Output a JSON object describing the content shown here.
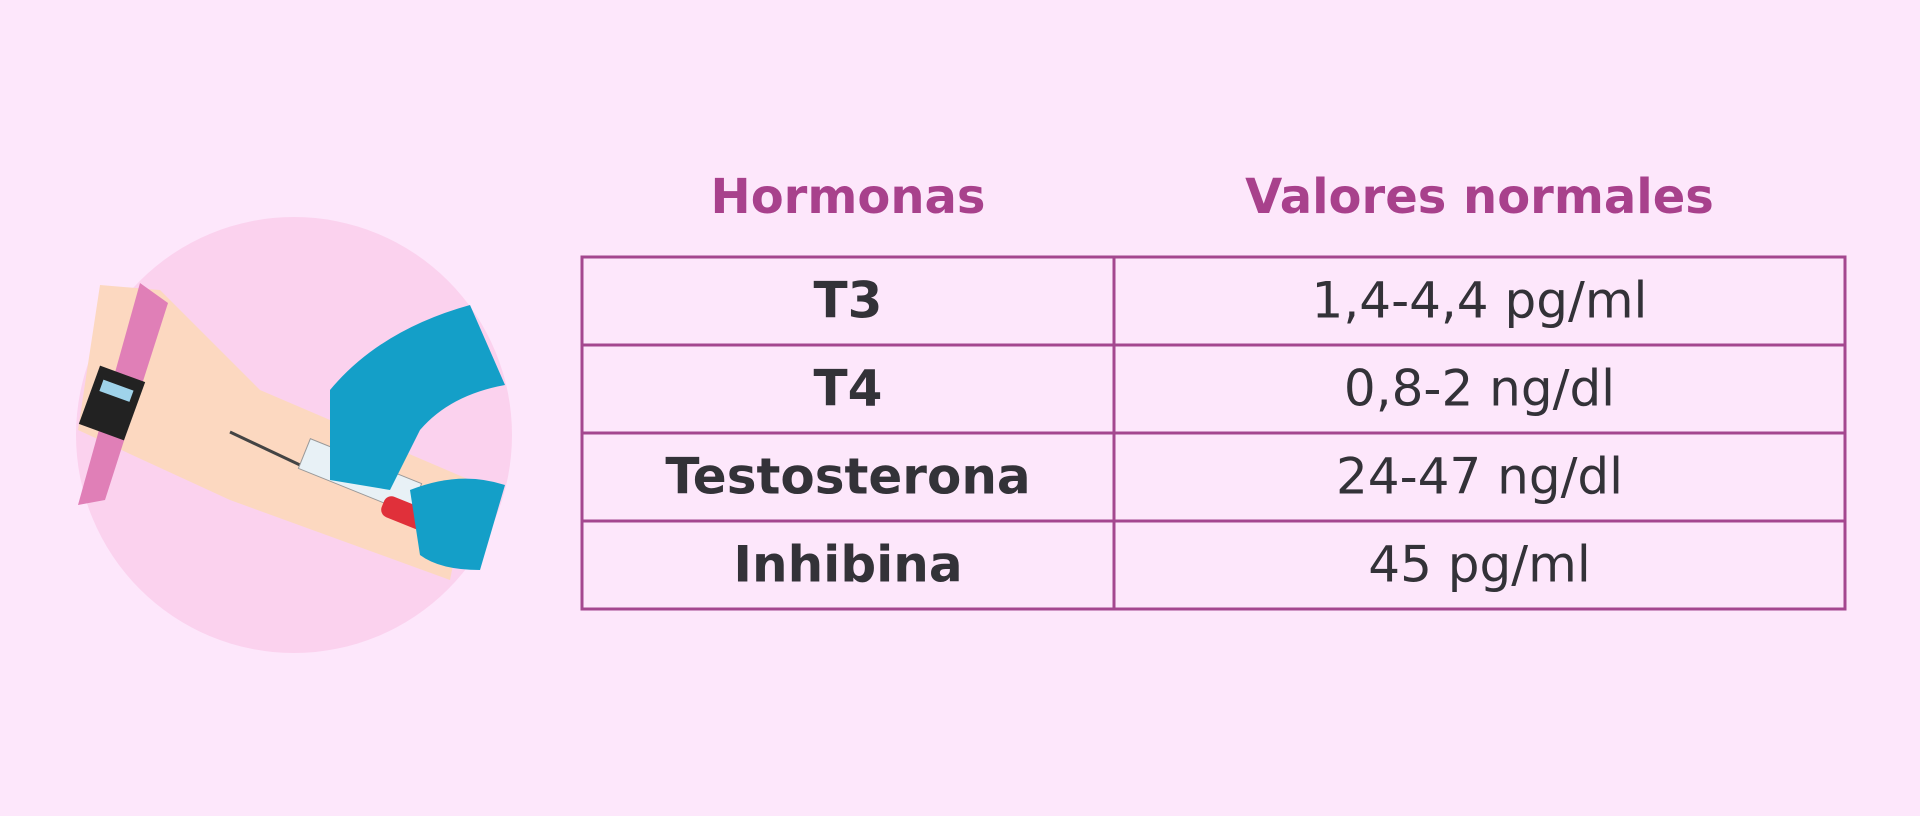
{
  "table": {
    "headers": [
      "Hormonas",
      "Valores normales"
    ],
    "rows": [
      [
        "T3",
        "1,4-4,4 pg/ml"
      ],
      [
        "T4",
        "0,8-2 ng/dl"
      ],
      [
        "Testosterona",
        "24-47 ng/dl"
      ],
      [
        "Inhibina",
        "45 pg/ml"
      ]
    ]
  }
}
